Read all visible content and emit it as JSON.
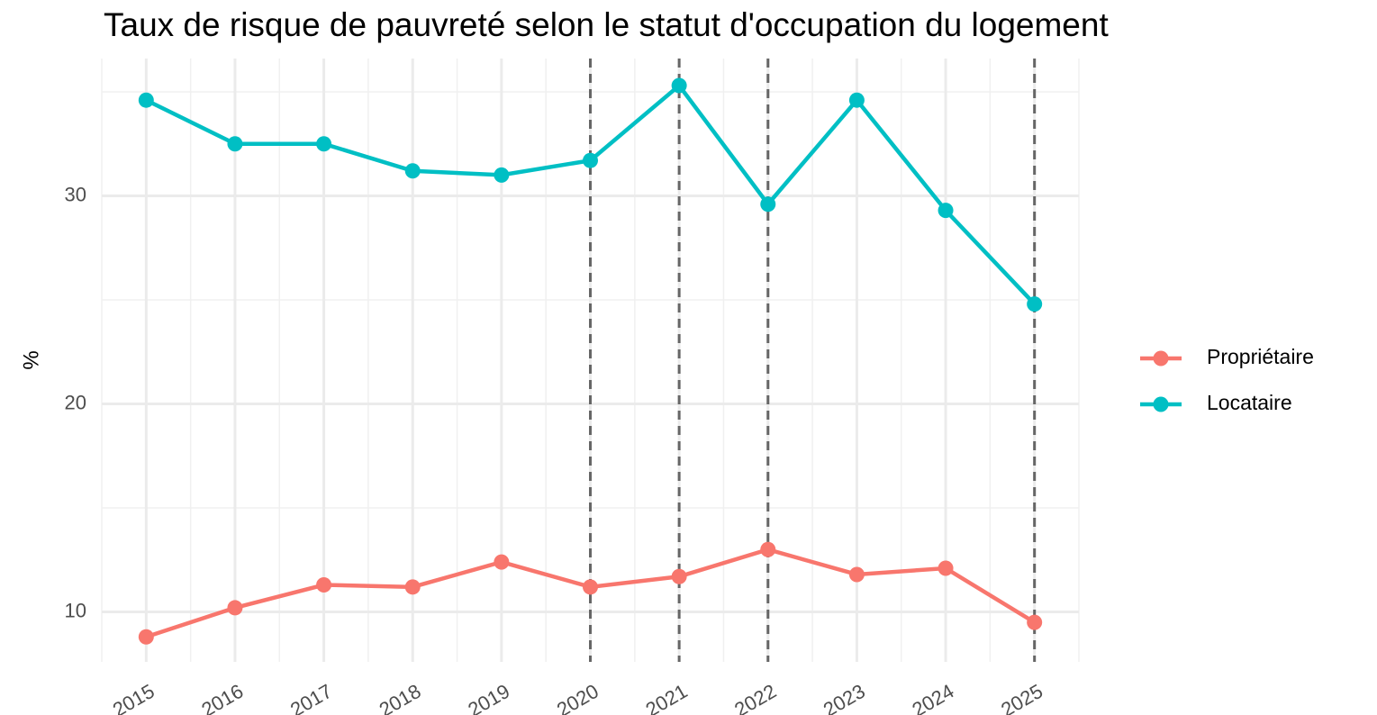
{
  "chart_data": {
    "type": "line",
    "title": "Taux de risque de pauvreté selon le statut d'occupation du logement",
    "y_label": "%",
    "x": [
      2015,
      2016,
      2017,
      2018,
      2019,
      2020,
      2021,
      2022,
      2023,
      2024,
      2025
    ],
    "series": [
      {
        "name": "Propriétaire",
        "color": "#F8766D",
        "values": [
          8.8,
          10.2,
          11.3,
          11.2,
          12.4,
          11.2,
          11.7,
          13.0,
          11.8,
          12.1,
          9.5
        ]
      },
      {
        "name": "Locataire",
        "color": "#00BFC4",
        "values": [
          34.6,
          32.5,
          32.5,
          31.2,
          31.0,
          31.7,
          35.3,
          29.6,
          34.6,
          29.3,
          24.8
        ]
      }
    ],
    "xlim": [
      2014.5,
      2025.5
    ],
    "xticks": [
      2015,
      2016,
      2017,
      2018,
      2019,
      2020,
      2021,
      2022,
      2023,
      2024,
      2025
    ],
    "ylim": [
      7.6,
      36.6
    ],
    "yticks": [
      10,
      20,
      30
    ],
    "vlines": [
      2020,
      2021,
      2022,
      2025
    ],
    "vline_color": "#666666",
    "grid": true,
    "legend": "right"
  }
}
